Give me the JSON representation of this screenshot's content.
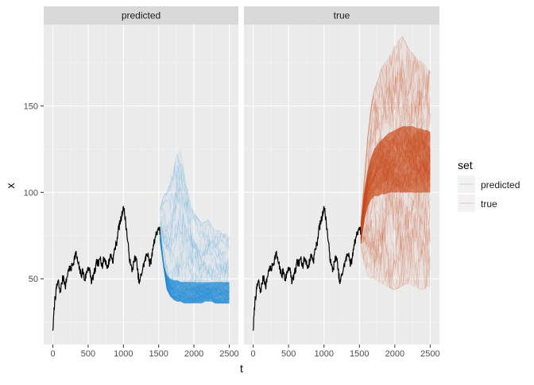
{
  "chart_data": {
    "type": "line",
    "facet_by": "set",
    "panels": [
      "predicted",
      "true"
    ],
    "xlabel": "t",
    "ylabel": "x",
    "xlim": [
      -130,
      2630
    ],
    "ylim": [
      12,
      197
    ],
    "x_ticks": [
      0,
      500,
      1000,
      1500,
      2000,
      2500
    ],
    "y_ticks": [
      50,
      100,
      150
    ],
    "grid": true,
    "legend": {
      "title": "set",
      "position": "right",
      "entries": [
        "predicted",
        "true"
      ]
    },
    "history": {
      "color": "#000000",
      "t": [
        0,
        25,
        50,
        75,
        100,
        125,
        150,
        175,
        200,
        225,
        250,
        275,
        300,
        325,
        350,
        375,
        400,
        425,
        450,
        475,
        500,
        525,
        550,
        575,
        600,
        625,
        650,
        675,
        700,
        725,
        750,
        775,
        800,
        825,
        850,
        875,
        900,
        925,
        950,
        975,
        1000,
        1025,
        1050,
        1075,
        1100,
        1125,
        1150,
        1175,
        1200,
        1225,
        1250,
        1275,
        1300,
        1325,
        1350,
        1375,
        1400,
        1425,
        1450,
        1475,
        1500,
        1520
      ],
      "x": [
        20,
        37,
        44,
        49,
        42,
        47,
        52,
        45,
        51,
        56,
        55,
        58,
        61,
        65,
        60,
        56,
        52,
        55,
        49,
        53,
        57,
        54,
        48,
        52,
        55,
        60,
        58,
        63,
        57,
        62,
        60,
        56,
        61,
        64,
        60,
        67,
        70,
        78,
        82,
        86,
        92,
        85,
        76,
        66,
        58,
        55,
        60,
        63,
        55,
        47,
        52,
        56,
        60,
        63,
        65,
        58,
        62,
        70,
        74,
        77,
        80,
        76
      ]
    },
    "series": [
      {
        "name": "predicted",
        "color": "#1e88d6",
        "t_range": [
          1520,
          2500
        ],
        "band_min": [
          76,
          58,
          44,
          40,
          38,
          37,
          37,
          36,
          36,
          36,
          36,
          36,
          36,
          37,
          37,
          37,
          36,
          36,
          36,
          36,
          36
        ],
        "band_max": [
          90,
          98,
          100,
          106,
          115,
          122,
          126,
          112,
          102,
          92,
          88,
          85,
          82,
          83,
          84,
          80,
          78,
          78,
          76,
          76,
          74
        ],
        "bulk_high": [
          72,
          58,
          52,
          50,
          49,
          49,
          48,
          48,
          48,
          48,
          48,
          48,
          48,
          48,
          48,
          48,
          48,
          48,
          48,
          48,
          48
        ]
      },
      {
        "name": "true",
        "color": "#c84a1c",
        "t_range": [
          1520,
          2500
        ],
        "band_min": [
          66,
          58,
          52,
          50,
          50,
          48,
          47,
          46,
          45,
          44,
          44,
          45,
          46,
          47,
          47,
          46,
          45,
          44,
          44,
          45,
          46
        ],
        "band_max": [
          84,
          108,
          132,
          150,
          160,
          165,
          172,
          175,
          178,
          182,
          185,
          188,
          190,
          186,
          182,
          180,
          178,
          176,
          175,
          172,
          170
        ],
        "bulk_low": [
          70,
          84,
          92,
          96,
          98,
          98,
          99,
          99,
          100,
          100,
          100,
          100,
          100,
          100,
          100,
          100,
          100,
          100,
          100,
          100,
          100
        ],
        "bulk_high": [
          80,
          100,
          112,
          120,
          125,
          128,
          130,
          132,
          134,
          135,
          136,
          137,
          138,
          138,
          138,
          138,
          137,
          137,
          136,
          136,
          135
        ]
      }
    ]
  }
}
